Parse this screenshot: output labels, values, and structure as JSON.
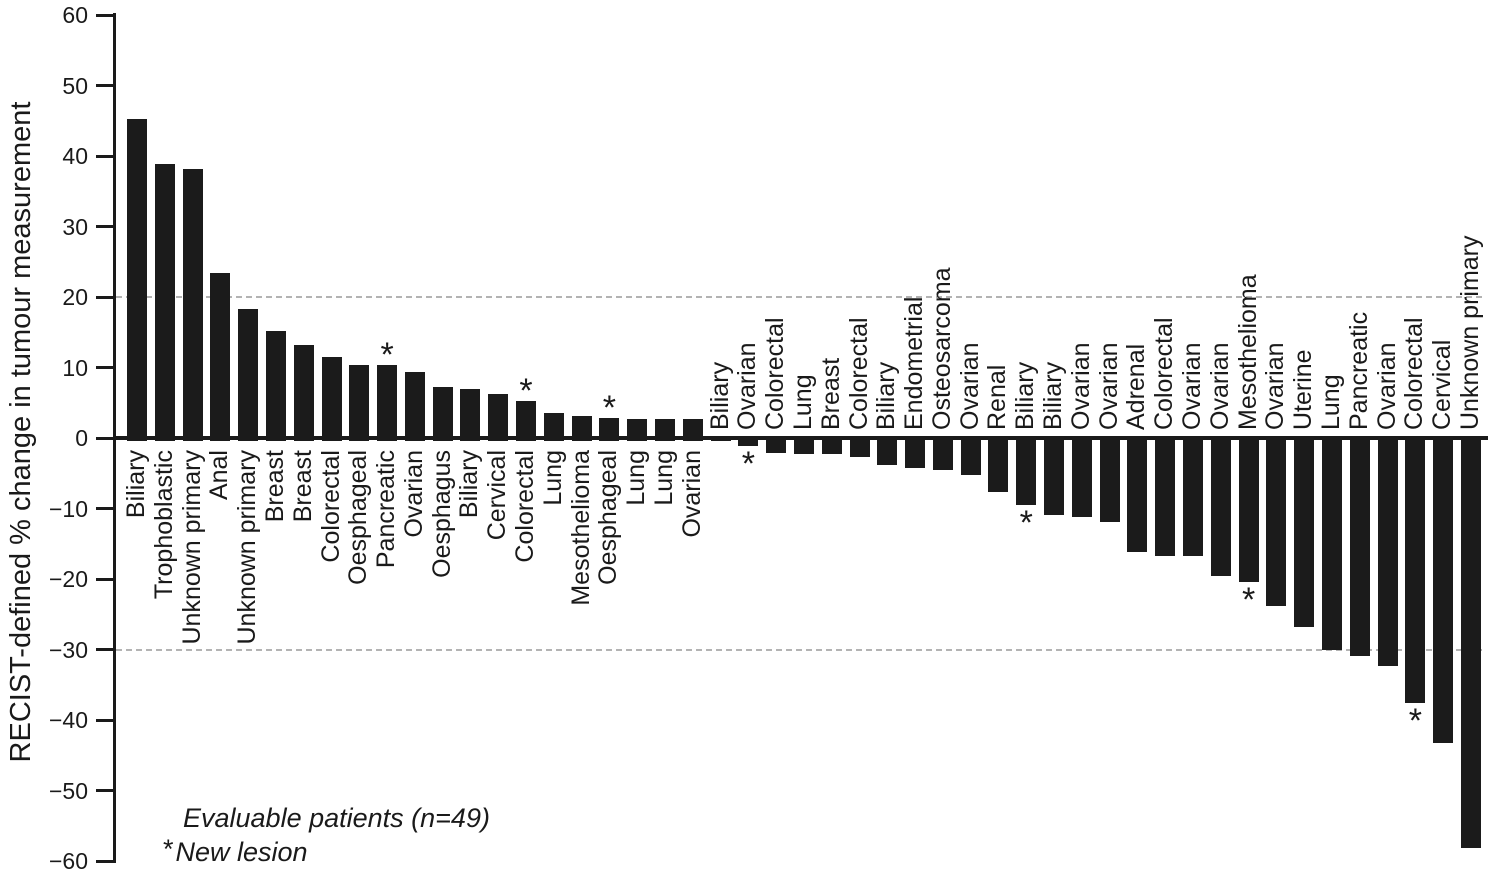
{
  "chart_data": {
    "type": "bar",
    "title": "",
    "xlabel": "",
    "ylabel": "RECIST-defined % change in tumour measurement",
    "ylim": [
      -60,
      60
    ],
    "yticks": [
      60,
      50,
      40,
      30,
      20,
      10,
      0,
      -10,
      -20,
      -30,
      -40,
      -50,
      -60
    ],
    "dashed_gridlines": [
      20,
      -30
    ],
    "grid_on": false,
    "legend_position": "bottom-left",
    "bar_color": "#1b1b1b",
    "grid_color": "#b3b3b3",
    "legend": {
      "evaluable": "Evaluable patients (n=49)",
      "new_lesion_marker": "*",
      "new_lesion_label": "New lesion"
    },
    "bars": [
      {
        "label": "Biliary",
        "value": 45.2,
        "new_lesion": false
      },
      {
        "label": "Trophoblastic",
        "value": 38.9,
        "new_lesion": false
      },
      {
        "label": "Unknown primary",
        "value": 38.2,
        "new_lesion": false
      },
      {
        "label": "Anal",
        "value": 23.4,
        "new_lesion": false
      },
      {
        "label": "Unknown primary",
        "value": 18.3,
        "new_lesion": false
      },
      {
        "label": "Breast",
        "value": 15.2,
        "new_lesion": false
      },
      {
        "label": "Breast",
        "value": 13.2,
        "new_lesion": false
      },
      {
        "label": "Colorectal",
        "value": 11.5,
        "new_lesion": false
      },
      {
        "label": "Oesphageal",
        "value": 10.4,
        "new_lesion": false
      },
      {
        "label": "Pancreatic",
        "value": 10.3,
        "new_lesion": true
      },
      {
        "label": "Ovarian",
        "value": 9.4,
        "new_lesion": false
      },
      {
        "label": "Oesphagus",
        "value": 7.2,
        "new_lesion": false
      },
      {
        "label": "Biliary",
        "value": 7.0,
        "new_lesion": false
      },
      {
        "label": "Cervical",
        "value": 6.3,
        "new_lesion": false
      },
      {
        "label": "Colorectal",
        "value": 5.3,
        "new_lesion": true
      },
      {
        "label": "Lung",
        "value": 3.6,
        "new_lesion": false
      },
      {
        "label": "Mesothelioma",
        "value": 3.1,
        "new_lesion": false
      },
      {
        "label": "Oesphageal",
        "value": 2.8,
        "new_lesion": true
      },
      {
        "label": "Lung",
        "value": 2.7,
        "new_lesion": false
      },
      {
        "label": "Lung",
        "value": 2.7,
        "new_lesion": false
      },
      {
        "label": "Ovarian",
        "value": 2.7,
        "new_lesion": false
      },
      {
        "label": "Biliary",
        "value": -0.4,
        "new_lesion": false
      },
      {
        "label": "Ovarian",
        "value": -1.2,
        "new_lesion": true
      },
      {
        "label": "Colorectal",
        "value": -2.1,
        "new_lesion": false
      },
      {
        "label": "Lung",
        "value": -2.3,
        "new_lesion": false
      },
      {
        "label": "Breast",
        "value": -2.3,
        "new_lesion": false
      },
      {
        "label": "Colorectal",
        "value": -2.7,
        "new_lesion": false
      },
      {
        "label": "Biliary",
        "value": -3.8,
        "new_lesion": false
      },
      {
        "label": "Endometrial",
        "value": -4.3,
        "new_lesion": false
      },
      {
        "label": "Osteosarcoma",
        "value": -4.5,
        "new_lesion": false
      },
      {
        "label": "Ovarian",
        "value": -5.2,
        "new_lesion": false
      },
      {
        "label": "Renal",
        "value": -7.7,
        "new_lesion": false
      },
      {
        "label": "Biliary",
        "value": -9.5,
        "new_lesion": true
      },
      {
        "label": "Biliary",
        "value": -10.9,
        "new_lesion": false
      },
      {
        "label": "Ovarian",
        "value": -11.2,
        "new_lesion": false
      },
      {
        "label": "Ovarian",
        "value": -11.9,
        "new_lesion": false
      },
      {
        "label": "Adrenal",
        "value": -16.2,
        "new_lesion": false
      },
      {
        "label": "Colorectal",
        "value": -16.8,
        "new_lesion": false
      },
      {
        "label": "Ovarian",
        "value": -16.8,
        "new_lesion": false
      },
      {
        "label": "Ovarian",
        "value": -19.6,
        "new_lesion": false
      },
      {
        "label": "Mesothelioma",
        "value": -20.4,
        "new_lesion": true
      },
      {
        "label": "Ovarian",
        "value": -23.8,
        "new_lesion": false
      },
      {
        "label": "Uterine",
        "value": -26.8,
        "new_lesion": false
      },
      {
        "label": "Lung",
        "value": -30.0,
        "new_lesion": false
      },
      {
        "label": "Pancreatic",
        "value": -30.9,
        "new_lesion": false
      },
      {
        "label": "Ovarian",
        "value": -32.4,
        "new_lesion": false
      },
      {
        "label": "Colorectal",
        "value": -37.6,
        "new_lesion": true
      },
      {
        "label": "Cervical",
        "value": -43.2,
        "new_lesion": false
      },
      {
        "label": "Unknown primary",
        "value": -58.2,
        "new_lesion": false
      }
    ]
  }
}
